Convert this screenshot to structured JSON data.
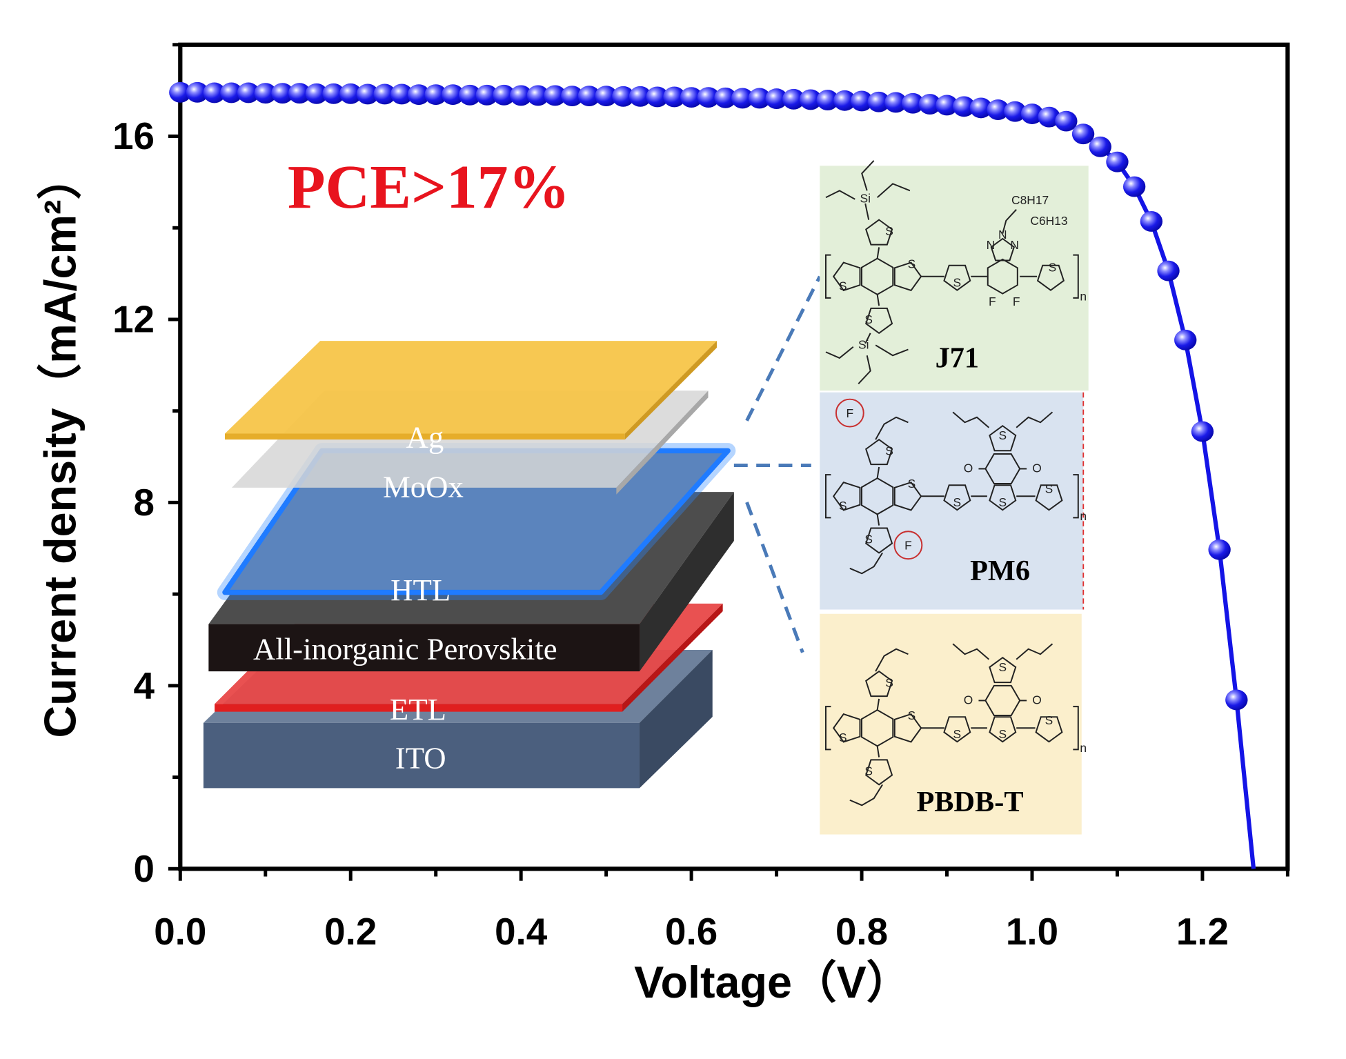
{
  "chart_data": {
    "type": "scatter",
    "title": "",
    "xlabel": "Voltage（V）",
    "ylabel": "Current density（mA/cm²）",
    "xlim": [
      0,
      1.3
    ],
    "ylim": [
      0,
      18
    ],
    "x_ticks": [
      "0.0",
      "0.2",
      "0.4",
      "0.6",
      "0.8",
      "1.0",
      "1.2"
    ],
    "y_ticks": [
      "0",
      "4",
      "8",
      "12",
      "16"
    ],
    "grid": false,
    "legend": "none",
    "series": [
      {
        "color": "#1414e6",
        "marker": "sphere",
        "x": [
          0.0,
          0.02,
          0.04,
          0.06,
          0.08,
          0.1,
          0.12,
          0.14,
          0.16,
          0.18,
          0.2,
          0.22,
          0.24,
          0.26,
          0.28,
          0.3,
          0.32,
          0.34,
          0.36,
          0.38,
          0.4,
          0.42,
          0.44,
          0.46,
          0.48,
          0.5,
          0.52,
          0.54,
          0.56,
          0.58,
          0.6,
          0.62,
          0.64,
          0.66,
          0.68,
          0.7,
          0.72,
          0.74,
          0.76,
          0.78,
          0.8,
          0.82,
          0.84,
          0.86,
          0.88,
          0.9,
          0.92,
          0.94,
          0.96,
          0.98,
          1.0,
          1.02,
          1.04,
          1.06,
          1.08,
          1.1,
          1.12,
          1.14,
          1.16,
          1.18,
          1.2,
          1.22,
          1.24
        ],
        "y": [
          16.96,
          16.96,
          16.95,
          16.95,
          16.95,
          16.94,
          16.94,
          16.94,
          16.93,
          16.93,
          16.93,
          16.92,
          16.92,
          16.92,
          16.91,
          16.91,
          16.91,
          16.9,
          16.9,
          16.9,
          16.89,
          16.89,
          16.89,
          16.88,
          16.88,
          16.88,
          16.87,
          16.87,
          16.86,
          16.86,
          16.85,
          16.85,
          16.84,
          16.83,
          16.83,
          16.82,
          16.81,
          16.8,
          16.79,
          16.78,
          16.77,
          16.75,
          16.74,
          16.72,
          16.7,
          16.68,
          16.65,
          16.62,
          16.58,
          16.54,
          16.49,
          16.42,
          16.33,
          16.05,
          15.77,
          15.44,
          14.9,
          14.14,
          13.06,
          11.55,
          9.55,
          6.97,
          3.69
        ]
      }
    ],
    "line_end": [
      1.26,
      0
    ],
    "annotations": {
      "pce": "PCE>17%",
      "pce_color": "#e8141e"
    }
  },
  "device_stack": {
    "layers": [
      "Ag",
      "MoOx",
      "HTL",
      "All-inorganic Perovskite",
      "ETL",
      "ITO"
    ]
  },
  "molecules": [
    {
      "name": "J71",
      "background": "#e3efd9",
      "substituents": [
        "C8H17",
        "C6H13"
      ],
      "atoms": [
        "S",
        "S",
        "S",
        "S",
        "S",
        "S",
        "Si",
        "Si",
        "N",
        "N",
        "N",
        "F",
        "F"
      ],
      "repeat": "n"
    },
    {
      "name": "PM6",
      "background": "#d9e3f0",
      "atoms": [
        "S",
        "S",
        "S",
        "S",
        "S",
        "S",
        "S",
        "S",
        "O",
        "O",
        "F",
        "F"
      ],
      "repeat": "n"
    },
    {
      "name": "PBDB-T",
      "background": "#fbefcc",
      "atoms": [
        "S",
        "S",
        "S",
        "S",
        "S",
        "S",
        "S",
        "S",
        "O",
        "O"
      ],
      "repeat": "n"
    }
  ]
}
